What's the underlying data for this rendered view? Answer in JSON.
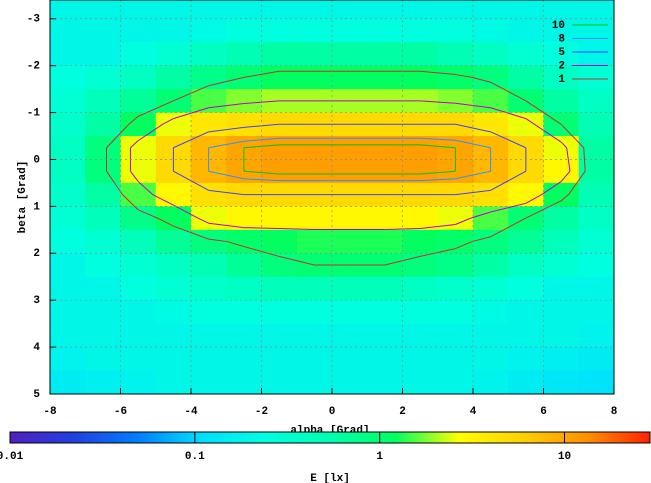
{
  "chart_data": {
    "type": "heatmap",
    "xlabel": "alpha [Grad]",
    "ylabel": "beta [Grad]",
    "cblabel": "E [lx]",
    "xlim": [
      -8,
      8
    ],
    "xticks": [
      -8,
      -6,
      -4,
      -2,
      0,
      2,
      4,
      6,
      8
    ],
    "ylim": [
      5,
      -3.4
    ],
    "yticks": [
      -3,
      -2,
      -1,
      0,
      1,
      2,
      3,
      4,
      5
    ],
    "grid": true,
    "legend": "top-right",
    "cblim": [
      0.01,
      29
    ],
    "cbticks": [
      0.01,
      0.1,
      1,
      10
    ],
    "cb_log": true,
    "palette": [
      "#5020c0",
      "#2040e0",
      "#0080ff",
      "#00e0ff",
      "#00ffe0",
      "#00ffb0",
      "#00ff60",
      "#ffff00",
      "#ffd000",
      "#ff9000",
      "#ff2000"
    ],
    "x_edges": [
      -8,
      -7,
      -6,
      -5,
      -4,
      -3,
      -2,
      -1,
      0,
      1,
      2,
      3,
      4,
      5,
      6,
      7,
      8
    ],
    "y_edges": [
      -3.5,
      -3,
      -2.5,
      -2,
      -1.5,
      -1,
      -0.5,
      0,
      0.5,
      1,
      1.5,
      2,
      2.5,
      3,
      3.5,
      4,
      4.5,
      5
    ],
    "z": [
      [
        0.2,
        0.2,
        0.2,
        0.2,
        0.2,
        0.2,
        0.2,
        0.2,
        0.2,
        0.2,
        0.2,
        0.2,
        0.2,
        0.2,
        0.2,
        0.2
      ],
      [
        0.2,
        0.2,
        0.2,
        0.2,
        0.22,
        0.25,
        0.25,
        0.25,
        0.25,
        0.25,
        0.25,
        0.25,
        0.22,
        0.2,
        0.2,
        0.2
      ],
      [
        0.2,
        0.2,
        0.25,
        0.3,
        0.4,
        0.5,
        0.6,
        0.6,
        0.6,
        0.6,
        0.6,
        0.5,
        0.4,
        0.3,
        0.25,
        0.2
      ],
      [
        0.25,
        0.3,
        0.4,
        0.6,
        0.8,
        1,
        1.2,
        1.2,
        1.2,
        1.2,
        1.2,
        1.1,
        0.9,
        0.6,
        0.4,
        0.3
      ],
      [
        0.3,
        0.45,
        0.7,
        1,
        1.5,
        1.8,
        2,
        2,
        2,
        2,
        2,
        1.8,
        1.5,
        1,
        0.6,
        0.4
      ],
      [
        0.35,
        0.6,
        1.2,
        2.5,
        4,
        4.5,
        5,
        5,
        5,
        5,
        5,
        5,
        4,
        2.5,
        1,
        0.5
      ],
      [
        0.4,
        0.9,
        2.5,
        5,
        8,
        10,
        11,
        11,
        11,
        11,
        11,
        10,
        8,
        5,
        2.5,
        0.6
      ],
      [
        0.4,
        0.9,
        2.5,
        5,
        8,
        10,
        11,
        11,
        11,
        11,
        11,
        10,
        8,
        5,
        3,
        0.6
      ],
      [
        0.35,
        0.6,
        1.5,
        3,
        4.5,
        5,
        5,
        5,
        5,
        5,
        5,
        5,
        4.5,
        3,
        1.2,
        0.5
      ],
      [
        0.3,
        0.45,
        0.8,
        1.2,
        2.5,
        3,
        3,
        3,
        3,
        3,
        3,
        2.5,
        1.5,
        1,
        0.6,
        0.4
      ],
      [
        0.25,
        0.3,
        0.45,
        0.7,
        0.9,
        1.1,
        1.2,
        1.3,
        1.3,
        1.3,
        1.2,
        1.1,
        0.9,
        0.7,
        0.45,
        0.3
      ],
      [
        0.2,
        0.25,
        0.3,
        0.4,
        0.5,
        0.7,
        0.9,
        1,
        1,
        1,
        0.9,
        0.8,
        0.6,
        0.4,
        0.3,
        0.25
      ],
      [
        0.2,
        0.2,
        0.25,
        0.3,
        0.35,
        0.4,
        0.45,
        0.45,
        0.45,
        0.45,
        0.4,
        0.35,
        0.3,
        0.25,
        0.2,
        0.2
      ],
      [
        0.2,
        0.2,
        0.2,
        0.22,
        0.25,
        0.25,
        0.25,
        0.25,
        0.25,
        0.25,
        0.25,
        0.25,
        0.22,
        0.2,
        0.2,
        0.2
      ],
      [
        0.2,
        0.2,
        0.2,
        0.2,
        0.2,
        0.2,
        0.2,
        0.2,
        0.2,
        0.2,
        0.2,
        0.2,
        0.2,
        0.2,
        0.2,
        0.18
      ],
      [
        0.18,
        0.2,
        0.2,
        0.2,
        0.2,
        0.2,
        0.2,
        0.2,
        0.2,
        0.2,
        0.2,
        0.2,
        0.2,
        0.18,
        0.16,
        0.15
      ],
      [
        0.15,
        0.16,
        0.18,
        0.2,
        0.2,
        0.2,
        0.2,
        0.2,
        0.2,
        0.2,
        0.2,
        0.2,
        0.18,
        0.15,
        0.13,
        0.12
      ]
    ],
    "contours": [
      {
        "level": 10,
        "color": "#00c000"
      },
      {
        "level": 8,
        "color": "#3090ff"
      },
      {
        "level": 5,
        "color": "#4040ff"
      },
      {
        "level": 2,
        "color": "#c000c0"
      },
      {
        "level": 1,
        "color": "#c03030"
      }
    ]
  }
}
